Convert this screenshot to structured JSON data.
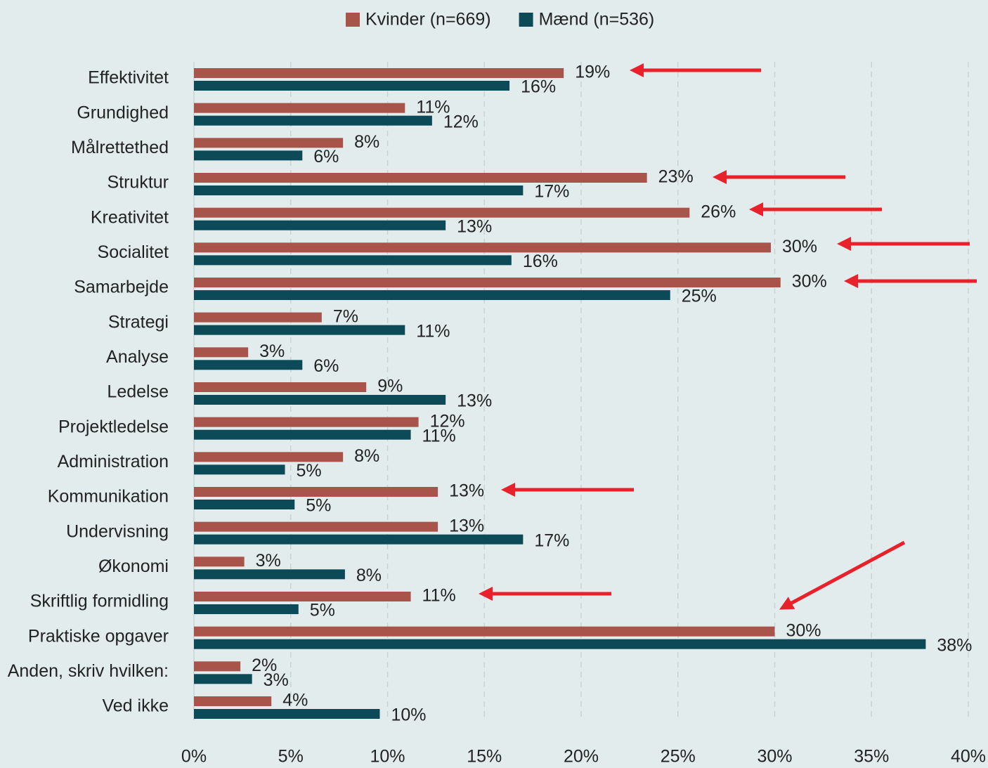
{
  "chart_data": {
    "type": "bar",
    "orientation": "horizontal",
    "categories": [
      "Effektivitet",
      "Grundighed",
      "Målrettethed",
      "Struktur",
      "Kreativitet",
      "Socialitet",
      "Samarbejde",
      "Strategi",
      "Analyse",
      "Ledelse",
      "Projektledelse",
      "Administration",
      "Kommunikation",
      "Undervisning",
      "Økonomi",
      "Skriftlig formidling",
      "Praktiske opgaver",
      "Anden, skriv hvilken:",
      "Ved ikke"
    ],
    "series": [
      {
        "name": "Kvinder (n=669)",
        "color": "#a9544a",
        "values": [
          19.1,
          10.9,
          7.7,
          23.4,
          25.6,
          29.8,
          30.3,
          6.6,
          2.8,
          8.9,
          11.6,
          7.7,
          12.6,
          12.6,
          2.6,
          11.2,
          30.0,
          2.4,
          4.0
        ],
        "value_labels": [
          "19%",
          "11%",
          "8%",
          "23%",
          "26%",
          "30%",
          "30%",
          "7%",
          "3%",
          "9%",
          "12%",
          "8%",
          "13%",
          "13%",
          "3%",
          "11%",
          "30%",
          "2%",
          "4%"
        ]
      },
      {
        "name": "Mænd (n=536)",
        "color": "#0b4a56",
        "values": [
          16.3,
          12.3,
          5.6,
          17.0,
          13.0,
          16.4,
          24.6,
          10.9,
          5.6,
          13.0,
          11.2,
          4.7,
          5.2,
          17.0,
          7.8,
          5.4,
          37.8,
          3.0,
          9.6
        ],
        "value_labels": [
          "16%",
          "12%",
          "6%",
          "17%",
          "13%",
          "16%",
          "25%",
          "11%",
          "6%",
          "13%",
          "11%",
          "5%",
          "5%",
          "17%",
          "8%",
          "5%",
          "38%",
          "3%",
          "10%"
        ]
      }
    ],
    "xlim": [
      0,
      40
    ],
    "xticks": [
      {
        "value": 0,
        "label": "0%"
      },
      {
        "value": 5,
        "label": "5%"
      },
      {
        "value": 10,
        "label": "10%"
      },
      {
        "value": 15,
        "label": "15%"
      },
      {
        "value": 20,
        "label": "20%"
      },
      {
        "value": 25,
        "label": "25%"
      },
      {
        "value": 30,
        "label": "30%"
      },
      {
        "value": 35,
        "label": "35%"
      },
      {
        "value": 40,
        "label": "40%"
      }
    ],
    "grid": true,
    "legend": "top"
  }
}
